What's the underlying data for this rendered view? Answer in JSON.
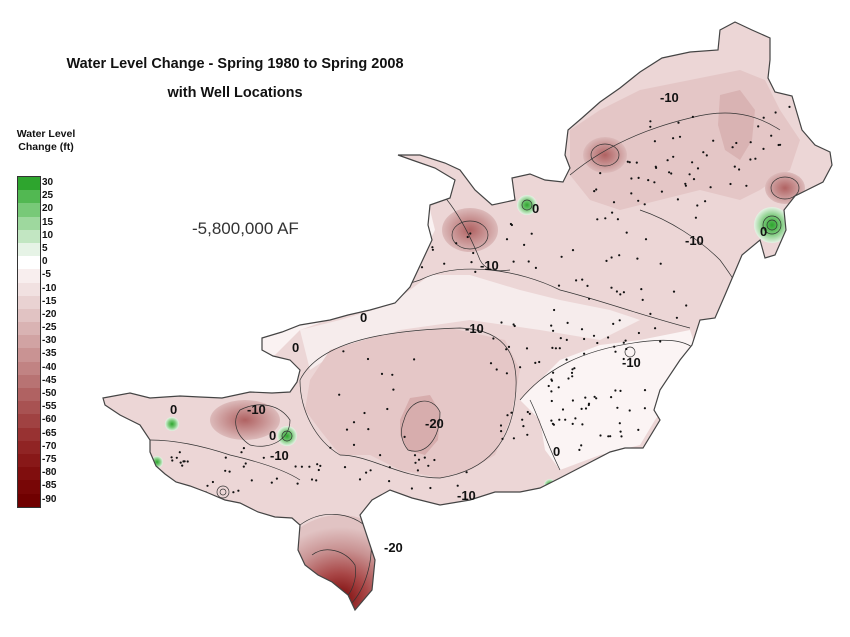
{
  "map": {
    "title_line1": "Water Level Change - Spring 1980 to Spring 2008",
    "title_line2": "with Well Locations",
    "volume_label": "-5,800,000 AF"
  },
  "legend": {
    "title_line1": "Water Level",
    "title_line2": "Change (ft)",
    "items": [
      {
        "label": "30",
        "color": "#2ea52e"
      },
      {
        "label": "25",
        "color": "#52b852"
      },
      {
        "label": "20",
        "color": "#78c978"
      },
      {
        "label": "15",
        "color": "#9ed89e"
      },
      {
        "label": "10",
        "color": "#c2e6c2"
      },
      {
        "label": "5",
        "color": "#e6f3e6"
      },
      {
        "label": "0",
        "color": "#ffffff"
      },
      {
        "label": "-5",
        "color": "#f8eeee"
      },
      {
        "label": "-10",
        "color": "#f1e1e1"
      },
      {
        "label": "-15",
        "color": "#e9d2d2"
      },
      {
        "label": "-20",
        "color": "#e1c3c3"
      },
      {
        "label": "-25",
        "color": "#d9b3b3"
      },
      {
        "label": "-30",
        "color": "#d1a3a3"
      },
      {
        "label": "-35",
        "color": "#c99393"
      },
      {
        "label": "-40",
        "color": "#c18383"
      },
      {
        "label": "-45",
        "color": "#b87373"
      },
      {
        "label": "-50",
        "color": "#b06262"
      },
      {
        "label": "-55",
        "color": "#a85252"
      },
      {
        "label": "-60",
        "color": "#a04242"
      },
      {
        "label": "-65",
        "color": "#983232"
      },
      {
        "label": "-70",
        "color": "#902424"
      },
      {
        "label": "-75",
        "color": "#881818"
      },
      {
        "label": "-80",
        "color": "#800e0e"
      },
      {
        "label": "-85",
        "color": "#780606"
      },
      {
        "label": "-90",
        "color": "#700000"
      }
    ]
  },
  "contour_labels": [
    "-10",
    "0",
    "-10",
    "0",
    "-10",
    "0",
    "0",
    "-10",
    "-10",
    "0",
    "-10",
    "-20",
    "-10",
    "-10",
    "0",
    "0",
    "-20"
  ]
}
